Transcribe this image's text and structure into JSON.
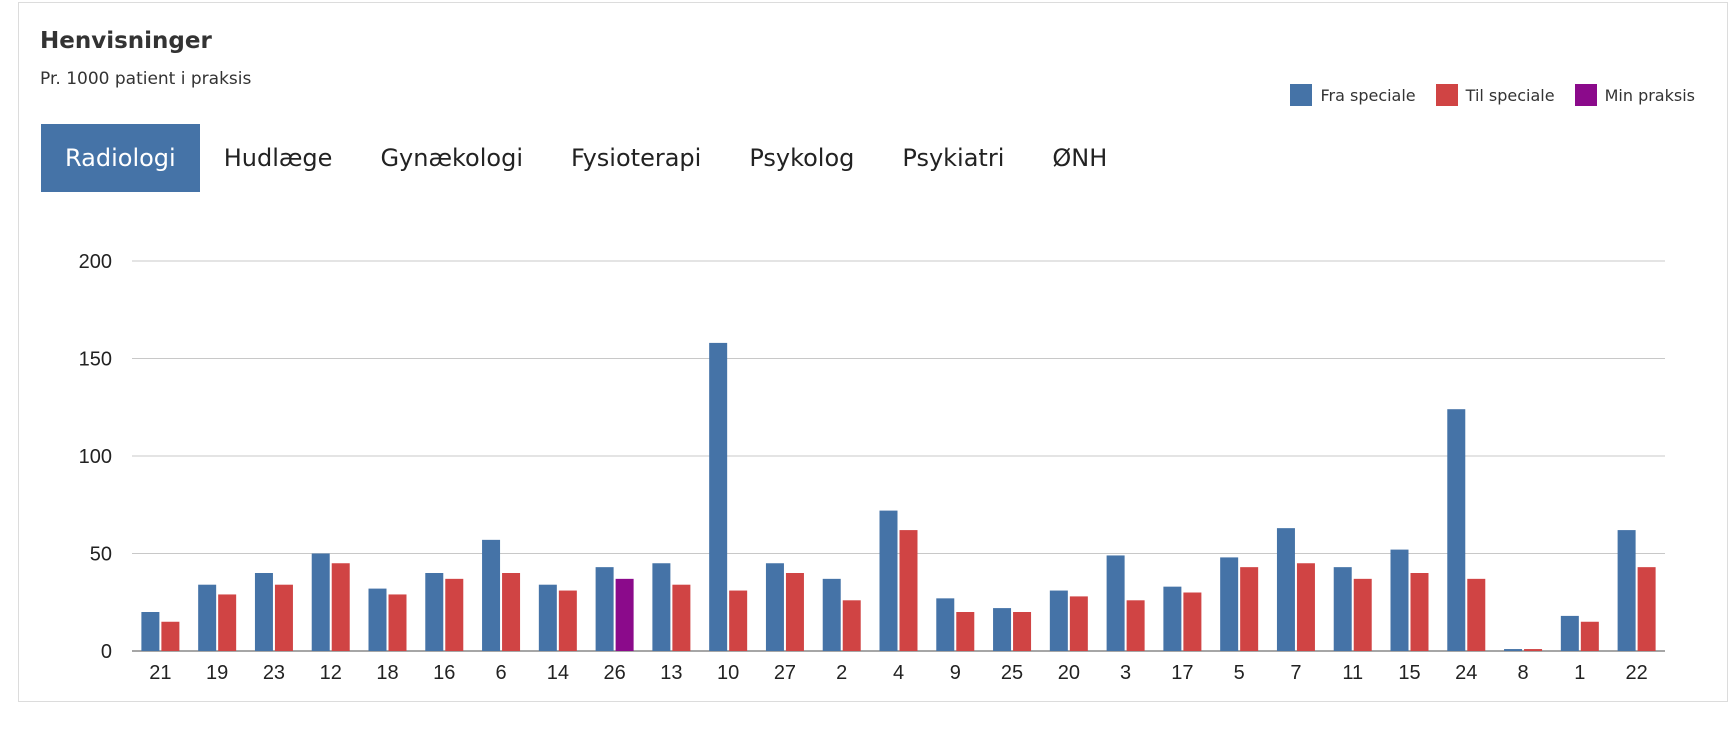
{
  "header": {
    "title": "Henvisninger",
    "subtitle": "Pr. 1000 patient i praksis"
  },
  "legend": [
    {
      "label": "Fra speciale",
      "color": "#4573a7"
    },
    {
      "label": "Til speciale",
      "color": "#d04444"
    },
    {
      "label": "Min praksis",
      "color": "#8b0a8b"
    }
  ],
  "tabs": [
    {
      "label": "Radiologi",
      "active": true
    },
    {
      "label": "Hudlæge",
      "active": false
    },
    {
      "label": "Gynækologi",
      "active": false
    },
    {
      "label": "Fysioterapi",
      "active": false
    },
    {
      "label": "Psykolog",
      "active": false
    },
    {
      "label": "Psykiatri",
      "active": false
    },
    {
      "label": "ØNH",
      "active": false
    }
  ],
  "colors": {
    "active_tab_bg": "#4573a7",
    "gridline": "#c8c8c8",
    "axis": "#888888"
  },
  "chart_data": {
    "type": "bar",
    "categories": [
      "21",
      "19",
      "23",
      "12",
      "18",
      "16",
      "6",
      "14",
      "26",
      "13",
      "10",
      "27",
      "2",
      "4",
      "9",
      "25",
      "20",
      "3",
      "17",
      "5",
      "7",
      "11",
      "15",
      "24",
      "8",
      "1",
      "22"
    ],
    "series": [
      {
        "name": "Fra speciale",
        "values": [
          20,
          34,
          40,
          50,
          32,
          40,
          57,
          34,
          43,
          45,
          158,
          45,
          37,
          72,
          27,
          22,
          31,
          49,
          33,
          48,
          63,
          43,
          52,
          124,
          1,
          18,
          62
        ]
      },
      {
        "name": "Til speciale",
        "values": [
          15,
          29,
          34,
          45,
          29,
          37,
          40,
          31,
          37,
          34,
          31,
          40,
          26,
          62,
          20,
          20,
          28,
          26,
          30,
          43,
          45,
          37,
          40,
          37,
          1,
          15,
          43
        ]
      }
    ],
    "highlight": {
      "category": "26",
      "series": "Til speciale",
      "color": "#8b0a8b",
      "label": "Min praksis"
    },
    "ylim": [
      0,
      200
    ],
    "yticks": [
      0,
      50,
      100,
      150,
      200
    ],
    "grid": true,
    "legend_position": "top-right"
  }
}
